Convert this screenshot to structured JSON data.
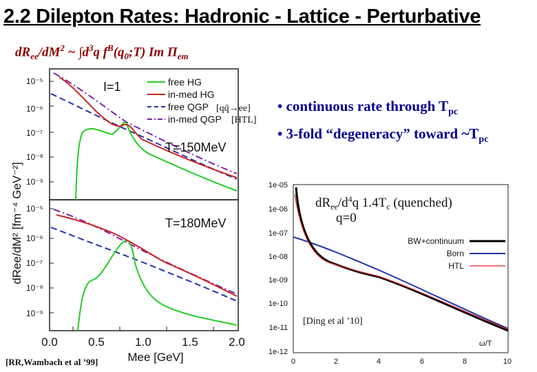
{
  "title": "2.2 Dilepton Rates: Hadronic - Lattice - Perturbative",
  "formula": {
    "lhs": "dR",
    "lhs_sub": "ee",
    "slash": "/dM",
    "sq": "2",
    "mid": " ~ ∫d",
    "three": "3",
    "q_f": "q  f",
    "B": "B",
    "arg_open": "(q",
    "zero": "0",
    "arg_close": ";T) Im Π",
    "em": "em"
  },
  "bullets": [
    {
      "text": "• continuous rate through T",
      "sub": "pc"
    },
    {
      "text": "• 3-fold “degeneracy” toward ~T",
      "sub": "pc"
    }
  ],
  "left_plot": {
    "y_axis_label": "dRee/dM² [fm⁻⁴ GeV⁻²]",
    "x_axis_label": "Mee [GeV]",
    "x_ticks": [
      "0.0",
      "0.5",
      "1.0",
      "1.5",
      "2.0"
    ],
    "y_ticks_top": [
      "10⁻⁵",
      "10⁻⁶",
      "10⁻⁷",
      "10⁻⁸",
      "10⁻⁹"
    ],
    "y_ticks_bottom": [
      "10⁻⁵",
      "10⁻⁶",
      "10⁻⁷",
      "10⁻⁸",
      "10⁻⁹"
    ],
    "isospin_label": "I=1",
    "temp_top": "T=150MeV",
    "temp_bottom": "T=180MeV",
    "legend": [
      "free HG",
      "in-med HG",
      "free QGP",
      "in-med QGP"
    ],
    "legend_colors": [
      "#22cc22",
      "#cc2222",
      "#2233aa",
      "#7a22aa"
    ],
    "annot_qq": "[qq̄→ee]",
    "annot_htl": "[HTL]",
    "reference": "[RR,Wambach et al ’99]"
  },
  "right_plot": {
    "y_ticks": [
      "1e-05",
      "1e-06",
      "1e-07",
      "1e-08",
      "1e-09",
      "1e-10",
      "1e-11",
      "1e-12"
    ],
    "x_ticks": [
      "0",
      "2",
      "4",
      "6",
      "8",
      "10"
    ],
    "x_axis_label": "ω/T",
    "header_line1_a": "dR",
    "header_line1_sub": "ee",
    "header_line1_b": "/d",
    "header_line1_sup": "4",
    "header_line1_c": "q   1.4T",
    "header_line1_subc": "c",
    "header_line1_d": "  (quenched)",
    "header_line2": "q=0",
    "legend": [
      "BW+continuum",
      "Born",
      "HTL"
    ],
    "legend_colors": [
      "#000000",
      "#2233aa",
      "#dd2222"
    ],
    "reference": "[Ding et al ’10]"
  }
}
